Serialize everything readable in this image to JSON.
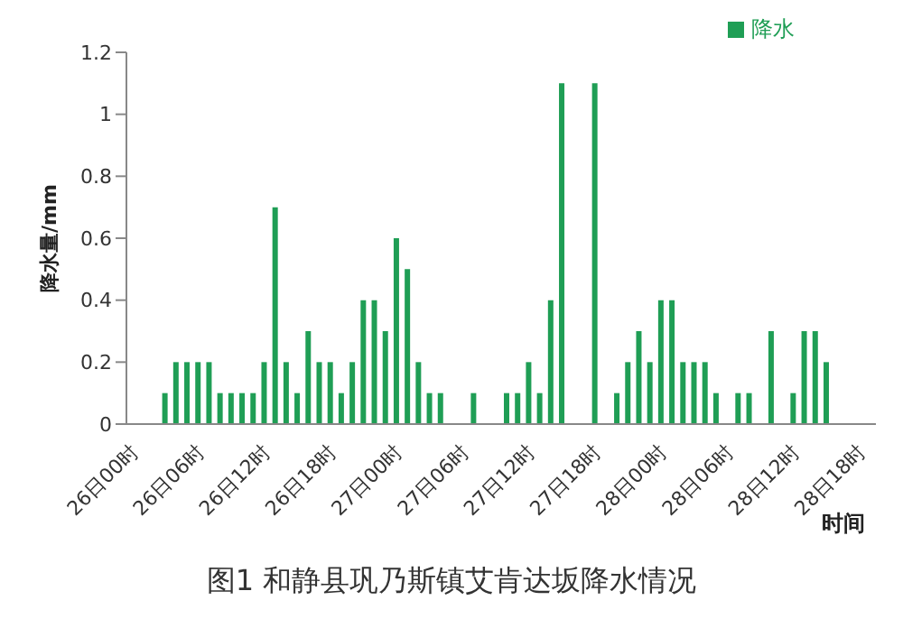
{
  "chart_data": {
    "type": "bar",
    "title": "图1 和静县巩乃斯镇艾肯达坂降水情况",
    "xlabel": "时间",
    "ylabel": "降水量/mm",
    "categories": [
      "26日00时",
      null,
      null,
      null,
      null,
      null,
      "26日06时",
      null,
      null,
      null,
      null,
      null,
      "26日12时",
      null,
      null,
      null,
      null,
      null,
      "26日18时",
      null,
      null,
      null,
      null,
      null,
      "27日00时",
      null,
      null,
      null,
      null,
      null,
      "27日06时",
      null,
      null,
      null,
      null,
      null,
      "27日12时",
      null,
      null,
      null,
      null,
      null,
      "27日18时",
      null,
      null,
      null,
      null,
      null,
      "28日00时",
      null,
      null,
      null,
      null,
      null,
      "28日06时",
      null,
      null,
      null,
      null,
      null,
      "28日12时",
      null,
      null,
      null,
      null,
      null,
      "28日18时",
      null
    ],
    "series": [
      {
        "name": "降水",
        "color": "#1f9e55",
        "values": [
          0,
          0,
          0,
          0.1,
          0.2,
          0.2,
          0.2,
          0.2,
          0.1,
          0.1,
          0.1,
          0.1,
          0.2,
          0.7,
          0.2,
          0.1,
          0.3,
          0.2,
          0.2,
          0.1,
          0.2,
          0.4,
          0.4,
          0.3,
          0.6,
          0.5,
          0.2,
          0.1,
          0.1,
          0,
          0,
          0.1,
          0,
          0,
          0.1,
          0.1,
          0.2,
          0.1,
          0.4,
          1.1,
          0,
          0,
          1.1,
          0,
          0.1,
          0.2,
          0.3,
          0.2,
          0.4,
          0.4,
          0.2,
          0.2,
          0.2,
          0.1,
          0,
          0.1,
          0.1,
          0,
          0.3,
          0,
          0.1,
          0.3,
          0.3,
          0.2,
          0,
          0,
          0,
          0
        ]
      }
    ],
    "ylim": [
      0,
      1.2
    ],
    "yticks": [
      0,
      0.2,
      0.4,
      0.6,
      0.8,
      1,
      1.2
    ],
    "legend": "top right"
  }
}
